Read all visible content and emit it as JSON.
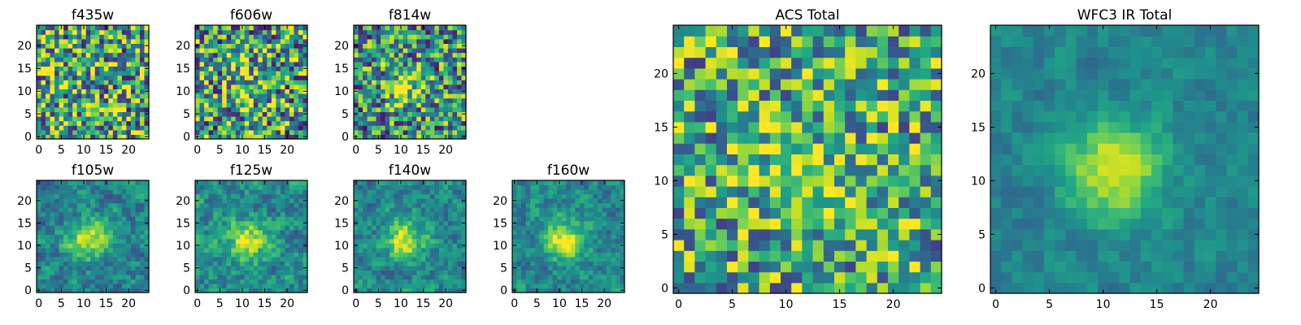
{
  "chart_data": {
    "type": "heatmap",
    "colormap": "viridis",
    "panels": [
      {
        "id": "f435w",
        "title": "f435w",
        "grid": 25,
        "xticks": [
          0,
          5,
          10,
          15,
          20
        ],
        "yticks": [
          0,
          5,
          10,
          15,
          20
        ],
        "xlim": [
          -0.5,
          24.5
        ],
        "ylim": [
          -0.5,
          24.5
        ],
        "blob": 0.05,
        "noise": 0.5,
        "base": 0.58
      },
      {
        "id": "f606w",
        "title": "f606w",
        "grid": 25,
        "xticks": [
          0,
          5,
          10,
          15,
          20
        ],
        "yticks": [
          0,
          5,
          10,
          15,
          20
        ],
        "xlim": [
          -0.5,
          24.5
        ],
        "ylim": [
          -0.5,
          24.5
        ],
        "blob": 0.12,
        "noise": 0.5,
        "base": 0.55
      },
      {
        "id": "f814w",
        "title": "f814w",
        "grid": 25,
        "xticks": [
          0,
          5,
          10,
          15,
          20
        ],
        "yticks": [
          0,
          5,
          10,
          15,
          20
        ],
        "xlim": [
          -0.5,
          24.5
        ],
        "ylim": [
          -0.5,
          24.5
        ],
        "blob": 0.35,
        "noise": 0.45,
        "base": 0.5
      },
      {
        "id": "f105w",
        "title": "f105w",
        "grid": 25,
        "xticks": [
          0,
          5,
          10,
          15,
          20
        ],
        "yticks": [
          0,
          5,
          10,
          15,
          20
        ],
        "xlim": [
          -0.5,
          24.5
        ],
        "ylim": [
          -0.5,
          24.5
        ],
        "blob": 0.5,
        "noise": 0.3,
        "base": 0.45
      },
      {
        "id": "f125w",
        "title": "f125w",
        "grid": 25,
        "xticks": [
          0,
          5,
          10,
          15,
          20
        ],
        "yticks": [
          0,
          5,
          10,
          15,
          20
        ],
        "xlim": [
          -0.5,
          24.5
        ],
        "ylim": [
          -0.5,
          24.5
        ],
        "blob": 0.45,
        "noise": 0.32,
        "base": 0.48
      },
      {
        "id": "f140w",
        "title": "f140w",
        "grid": 25,
        "xticks": [
          0,
          5,
          10,
          15,
          20
        ],
        "yticks": [
          0,
          5,
          10,
          15,
          20
        ],
        "xlim": [
          -0.5,
          24.5
        ],
        "ylim": [
          -0.5,
          24.5
        ],
        "blob": 0.5,
        "noise": 0.3,
        "base": 0.45
      },
      {
        "id": "f160w",
        "title": "f160w",
        "grid": 25,
        "xticks": [
          0,
          5,
          10,
          15,
          20
        ],
        "yticks": [
          0,
          5,
          10,
          15,
          20
        ],
        "xlim": [
          -0.5,
          24.5
        ],
        "ylim": [
          -0.5,
          24.5
        ],
        "blob": 0.5,
        "noise": 0.28,
        "base": 0.45
      },
      {
        "id": "acs-total",
        "title": "ACS Total",
        "grid": 25,
        "xticks": [
          0,
          5,
          10,
          15,
          20
        ],
        "yticks": [
          0,
          5,
          10,
          15,
          20
        ],
        "xlim": [
          -0.5,
          24.5
        ],
        "ylim": [
          -0.5,
          24.5
        ],
        "blob": 0.28,
        "noise": 0.42,
        "base": 0.6
      },
      {
        "id": "wfc3-ir-total",
        "title": "WFC3 IR Total",
        "grid": 25,
        "xticks": [
          0,
          5,
          10,
          15,
          20
        ],
        "yticks": [
          0,
          5,
          10,
          15,
          20
        ],
        "xlim": [
          -0.5,
          24.5
        ],
        "ylim": [
          -0.5,
          24.5
        ],
        "blob": 0.5,
        "noise": 0.16,
        "base": 0.45
      }
    ],
    "source_center": [
      11,
      11
    ],
    "source_sigma": 3.2
  }
}
